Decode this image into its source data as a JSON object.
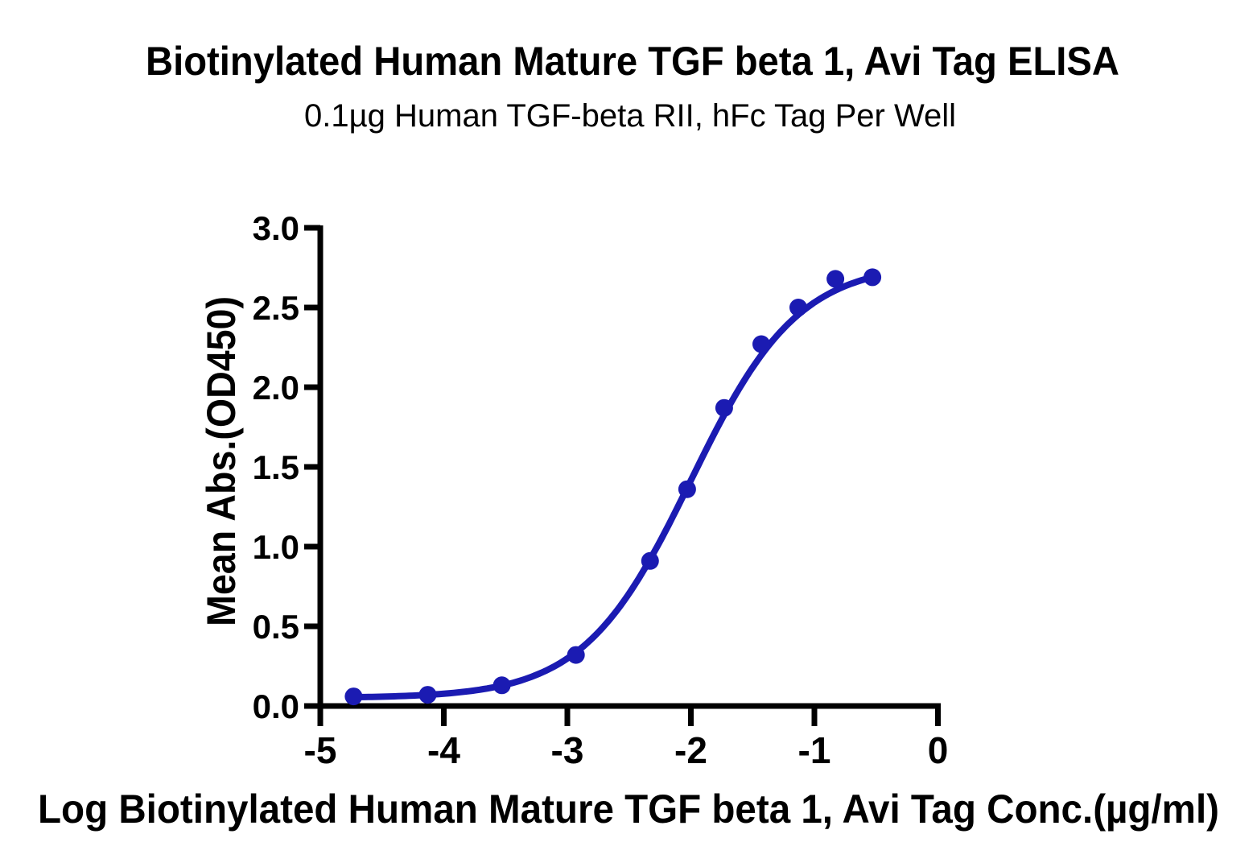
{
  "chart_data": {
    "type": "line",
    "title": "Biotinylated Human Mature TGF beta 1, Avi Tag ELISA",
    "subtitle": "0.1µg Human TGF-beta RII, hFc Tag Per Well",
    "xlabel": "Log Biotinylated Human Mature TGF beta 1, Avi Tag Conc.(µg/ml)",
    "ylabel": "Mean Abs.(OD450)",
    "xlim": [
      -5,
      0
    ],
    "ylim": [
      0,
      3
    ],
    "grid": false,
    "legend_position": "none",
    "axis_color": "#000000",
    "xticks": {
      "values": [
        -5,
        -4,
        -3,
        -2,
        -1,
        0
      ],
      "labels": [
        "-5",
        "-4",
        "-3",
        "-2",
        "-1",
        "0"
      ]
    },
    "yticks": {
      "values": [
        0,
        0.5,
        1,
        1.5,
        2,
        2.5,
        3
      ],
      "labels": [
        "0.0",
        "0.5",
        "1.0",
        "1.5",
        "2.0",
        "2.5",
        "3.0"
      ]
    },
    "series": [
      {
        "name": "Biotinylated Human Mature TGF beta 1, Avi Tag",
        "color": "#1b1bb2",
        "marker": "circle",
        "points": [
          {
            "x": -4.73,
            "y": 0.06
          },
          {
            "x": -4.13,
            "y": 0.07
          },
          {
            "x": -3.53,
            "y": 0.13
          },
          {
            "x": -2.93,
            "y": 0.32
          },
          {
            "x": -2.33,
            "y": 0.91
          },
          {
            "x": -2.03,
            "y": 1.36
          },
          {
            "x": -1.73,
            "y": 1.87
          },
          {
            "x": -1.43,
            "y": 2.27
          },
          {
            "x": -1.13,
            "y": 2.5
          },
          {
            "x": -0.83,
            "y": 2.68
          },
          {
            "x": -0.53,
            "y": 2.69
          }
        ],
        "fit_curve": {
          "model": "4PL",
          "bottom": 0.05,
          "top": 2.78,
          "logEC50": -2.0,
          "hillslope": 1.0
        }
      }
    ]
  }
}
